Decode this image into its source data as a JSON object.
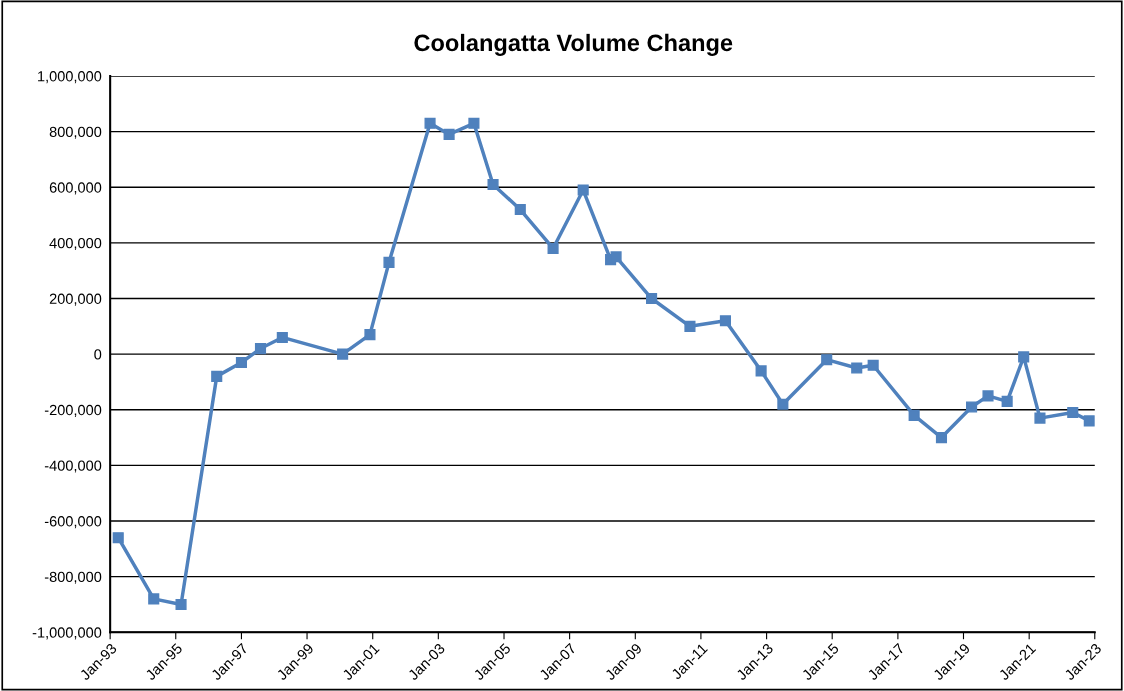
{
  "chart_data": {
    "type": "line",
    "title": "Coolangatta Volume Change",
    "x": [
      "1993-04",
      "1994-05",
      "1995-03",
      "1996-04",
      "1997-01",
      "1997-08",
      "1998-04",
      "2000-02",
      "2000-12",
      "2001-07",
      "2002-10",
      "2003-05",
      "2004-02",
      "2004-09",
      "2005-07",
      "2006-07",
      "2007-06",
      "2008-04",
      "2008-06",
      "2009-07",
      "2010-09",
      "2011-10",
      "2012-11",
      "2013-07",
      "2014-11",
      "2015-10",
      "2016-04",
      "2017-07",
      "2018-05",
      "2019-04",
      "2019-10",
      "2020-05",
      "2020-11",
      "2021-05",
      "2022-05",
      "2022-11"
    ],
    "series": [
      {
        "color": "#4f81bd",
        "values": [
          -660000,
          -880000,
          -900000,
          -80000,
          -30000,
          20000,
          60000,
          0,
          70000,
          330000,
          830000,
          790000,
          830000,
          610000,
          520000,
          380000,
          590000,
          340000,
          350000,
          200000,
          100000,
          120000,
          -60000,
          -180000,
          -20000,
          -50000,
          -40000,
          -220000,
          -300000,
          -190000,
          -150000,
          -170000,
          -10000,
          -230000,
          -210000,
          -240000
        ]
      }
    ],
    "xlim": [
      "1993-01",
      "2023-01"
    ],
    "xticks": [
      {
        "value": "1993-01",
        "label": "Jan-93"
      },
      {
        "value": "1995-01",
        "label": "Jan-95"
      },
      {
        "value": "1997-01",
        "label": "Jan-97"
      },
      {
        "value": "1999-01",
        "label": "Jan-99"
      },
      {
        "value": "2001-01",
        "label": "Jan-01"
      },
      {
        "value": "2003-01",
        "label": "Jan-03"
      },
      {
        "value": "2005-01",
        "label": "Jan-05"
      },
      {
        "value": "2007-01",
        "label": "Jan-07"
      },
      {
        "value": "2009-01",
        "label": "Jan-09"
      },
      {
        "value": "2011-01",
        "label": "Jan-11"
      },
      {
        "value": "2013-01",
        "label": "Jan-13"
      },
      {
        "value": "2015-01",
        "label": "Jan-15"
      },
      {
        "value": "2017-01",
        "label": "Jan-17"
      },
      {
        "value": "2019-01",
        "label": "Jan-19"
      },
      {
        "value": "2021-01",
        "label": "Jan-21"
      },
      {
        "value": "2023-01",
        "label": "Jan-23"
      }
    ],
    "ylim": [
      -1000000,
      1000000
    ],
    "yticks": [
      {
        "value": -1000000,
        "label": "-1,000,000"
      },
      {
        "value": -800000,
        "label": "-800,000"
      },
      {
        "value": -600000,
        "label": "-600,000"
      },
      {
        "value": -400000,
        "label": "-400,000"
      },
      {
        "value": -200000,
        "label": "-200,000"
      },
      {
        "value": 0,
        "label": "0"
      },
      {
        "value": 200000,
        "label": "200,000"
      },
      {
        "value": 400000,
        "label": "400,000"
      },
      {
        "value": 600000,
        "label": "600,000"
      },
      {
        "value": 800000,
        "label": "800,000"
      },
      {
        "value": 1000000,
        "label": "1,000,000"
      }
    ],
    "grid": "y",
    "marker": "square",
    "line_style": "solid"
  }
}
